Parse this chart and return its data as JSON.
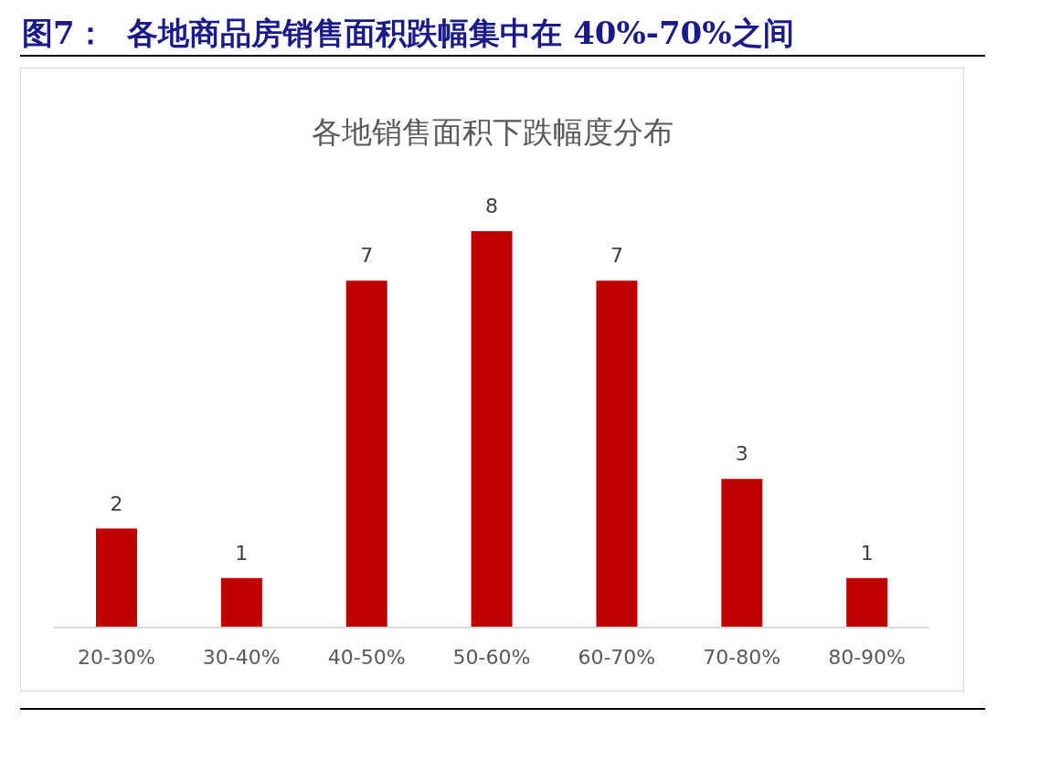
{
  "chart_data": {
    "type": "bar",
    "title": "图7：  各地商品房销售面积跌幅集中在 40%-70%之间",
    "subtitle": "各地销售面积下跌幅度分布",
    "categories": [
      "20-30%",
      "30-40%",
      "40-50%",
      "50-60%",
      "60-70%",
      "70-80%",
      "80-90%"
    ],
    "values": [
      2,
      1,
      7,
      8,
      7,
      3,
      1
    ],
    "color": "#c00000",
    "tick_labels": "x",
    "data_labels": true,
    "grid": false,
    "legend": false
  }
}
